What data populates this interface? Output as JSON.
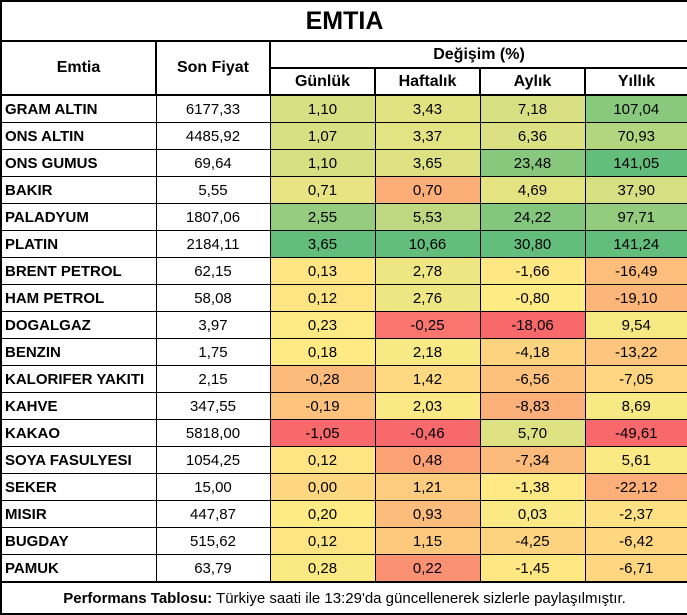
{
  "title": "EMTIA",
  "header": {
    "commodity": "Emtia",
    "last_price": "Son Fiyat",
    "change_group": "Değişim (%)",
    "periods": [
      "Günlük",
      "Haftalık",
      "Aylık",
      "Yıllık"
    ]
  },
  "rows": [
    {
      "name": "GRAM ALTIN",
      "price": "6177,33",
      "changes": [
        "1,10",
        "3,43",
        "7,18",
        "107,04"
      ]
    },
    {
      "name": "ONS ALTIN",
      "price": "4485,92",
      "changes": [
        "1,07",
        "3,37",
        "6,36",
        "70,93"
      ]
    },
    {
      "name": "ONS GUMUS",
      "price": "69,64",
      "changes": [
        "1,10",
        "3,65",
        "23,48",
        "141,05"
      ]
    },
    {
      "name": "BAKIR",
      "price": "5,55",
      "changes": [
        "0,71",
        "0,70",
        "4,69",
        "37,90"
      ]
    },
    {
      "name": "PALADYUM",
      "price": "1807,06",
      "changes": [
        "2,55",
        "5,53",
        "24,22",
        "97,71"
      ]
    },
    {
      "name": "PLATIN",
      "price": "2184,11",
      "changes": [
        "3,65",
        "10,66",
        "30,80",
        "141,24"
      ]
    },
    {
      "name": "BRENT PETROL",
      "price": "62,15",
      "changes": [
        "0,13",
        "2,78",
        "-1,66",
        "-16,49"
      ]
    },
    {
      "name": "HAM PETROL",
      "price": "58,08",
      "changes": [
        "0,12",
        "2,76",
        "-0,80",
        "-19,10"
      ]
    },
    {
      "name": "DOGALGAZ",
      "price": "3,97",
      "changes": [
        "0,23",
        "-0,25",
        "-18,06",
        "9,54"
      ]
    },
    {
      "name": "BENZIN",
      "price": "1,75",
      "changes": [
        "0,18",
        "2,18",
        "-4,18",
        "-13,22"
      ]
    },
    {
      "name": "KALORIFER YAKITI",
      "price": "2,15",
      "changes": [
        "-0,28",
        "1,42",
        "-6,56",
        "-7,05"
      ]
    },
    {
      "name": "KAHVE",
      "price": "347,55",
      "changes": [
        "-0,19",
        "2,03",
        "-8,83",
        "8,69"
      ]
    },
    {
      "name": "KAKAO",
      "price": "5818,00",
      "changes": [
        "-1,05",
        "-0,46",
        "5,70",
        "-49,61"
      ]
    },
    {
      "name": "SOYA FASULYESI",
      "price": "1054,25",
      "changes": [
        "0,12",
        "0,48",
        "-7,34",
        "5,61"
      ]
    },
    {
      "name": "SEKER",
      "price": "15,00",
      "changes": [
        "0,00",
        "1,21",
        "-1,38",
        "-22,12"
      ]
    },
    {
      "name": "MISIR",
      "price": "447,87",
      "changes": [
        "0,20",
        "0,93",
        "0,03",
        "-2,37"
      ]
    },
    {
      "name": "BUGDAY",
      "price": "515,62",
      "changes": [
        "0,12",
        "1,15",
        "-4,25",
        "-6,42"
      ]
    },
    {
      "name": "PAMUK",
      "price": "63,79",
      "changes": [
        "0,28",
        "0,22",
        "-1,45",
        "-6,71"
      ]
    }
  ],
  "footer": {
    "bold_label": "Performans Tablosu:",
    "text": " Türkiye saati ile 13:29'da güncellenerek sizlerle paylaşılmıştır."
  },
  "heatmap_scale": {
    "min_color": "#F8696B",
    "mid_color": "#FFEB84",
    "max_color": "#63BE7B"
  }
}
